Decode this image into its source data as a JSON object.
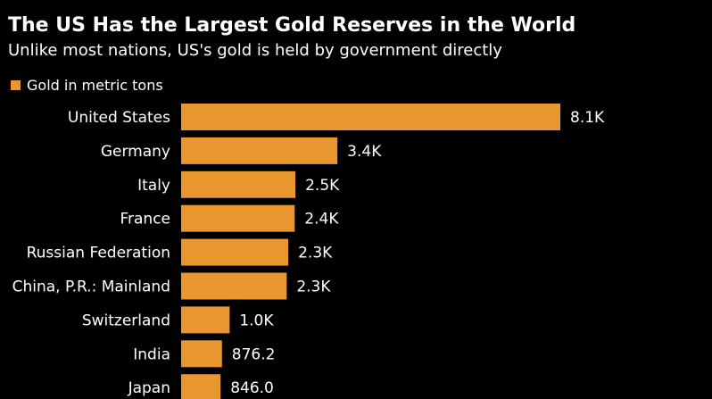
{
  "chart_data": {
    "type": "bar",
    "orientation": "horizontal",
    "title": "The US Has the Largest Gold Reserves in the World",
    "subtitle": "Unlike most nations, US's gold is held by government directly",
    "legend": {
      "placement": "top-left",
      "entries": [
        "Gold in metric tons"
      ]
    },
    "categories": [
      "United States",
      "Germany",
      "Italy",
      "France",
      "Russian Federation",
      "China, P.R.: Mainland",
      "Switzerland",
      "India",
      "Japan"
    ],
    "series": [
      {
        "name": "Gold in metric tons",
        "color": "#E8962E",
        "values": [
          8133.5,
          3352.3,
          2451.8,
          2436.4,
          2298.5,
          2264.3,
          1040.0,
          876.2,
          846.0
        ],
        "labels": [
          "8.1K",
          "3.4K",
          "2.5K",
          "2.4K",
          "2.3K",
          "2.3K",
          "1.0K",
          "876.2",
          "846.0"
        ]
      }
    ],
    "xlim": [
      0,
      8133.5
    ],
    "grid": false,
    "background": "#000000"
  }
}
